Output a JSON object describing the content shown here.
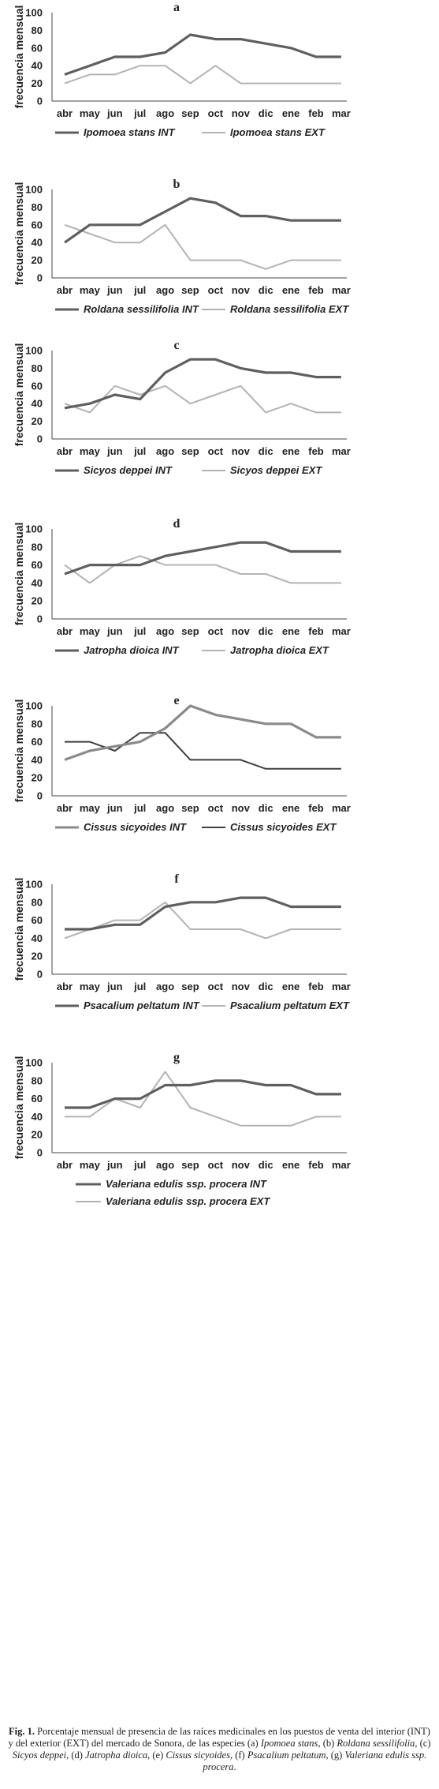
{
  "months": [
    "abr",
    "may",
    "jun",
    "jul",
    "ago",
    "sep",
    "oct",
    "nov",
    "dic",
    "ene",
    "feb",
    "mar"
  ],
  "colors": {
    "dark": "#5f5f5f",
    "light": "#b3b3b3"
  },
  "chart_data": [
    {
      "type": "line",
      "panel": "a",
      "ylabel": "frecuencia mensual",
      "ylim": [
        0,
        100
      ],
      "yticks": [
        0,
        20,
        40,
        60,
        80,
        100
      ],
      "categories": [
        "abr",
        "may",
        "jun",
        "jul",
        "ago",
        "sep",
        "oct",
        "nov",
        "dic",
        "ene",
        "feb",
        "mar"
      ],
      "series": [
        {
          "name": "Ipomoea stans INT",
          "color": "#5f5f5f",
          "values": [
            30,
            40,
            50,
            50,
            55,
            75,
            70,
            70,
            65,
            60,
            50,
            50
          ]
        },
        {
          "name": "Ipomoea stans  EXT",
          "color": "#b3b3b3",
          "values": [
            20,
            30,
            30,
            40,
            40,
            20,
            40,
            20,
            20,
            20,
            20,
            20
          ]
        }
      ]
    },
    {
      "type": "line",
      "panel": "b",
      "ylabel": "frecuencia mensual",
      "ylim": [
        0,
        100
      ],
      "yticks": [
        0,
        20,
        40,
        60,
        80,
        100
      ],
      "categories": [
        "abr",
        "may",
        "jun",
        "jul",
        "ago",
        "sep",
        "oct",
        "nov",
        "dic",
        "ene",
        "feb",
        "mar"
      ],
      "series": [
        {
          "name": "Roldana sessilifolia INT",
          "color": "#5f5f5f",
          "values": [
            40,
            60,
            60,
            60,
            75,
            90,
            85,
            70,
            70,
            65,
            65,
            65
          ]
        },
        {
          "name": "Roldana sessilifolia EXT",
          "color": "#b3b3b3",
          "values": [
            60,
            50,
            40,
            40,
            60,
            20,
            20,
            20,
            10,
            20,
            20,
            20
          ]
        }
      ]
    },
    {
      "type": "line",
      "panel": "c",
      "ylabel": "frecuencia mensual",
      "ylim": [
        0,
        100
      ],
      "yticks": [
        0,
        20,
        40,
        60,
        80,
        100
      ],
      "categories": [
        "abr",
        "may",
        "jun",
        "jul",
        "ago",
        "sep",
        "oct",
        "nov",
        "dic",
        "ene",
        "feb",
        "mar"
      ],
      "series": [
        {
          "name": "Sicyos deppei INT",
          "color": "#5f5f5f",
          "values": [
            35,
            40,
            50,
            45,
            75,
            90,
            90,
            80,
            75,
            75,
            70,
            70
          ]
        },
        {
          "name": "Sicyos deppei EXT",
          "color": "#b3b3b3",
          "values": [
            40,
            30,
            60,
            50,
            60,
            40,
            50,
            60,
            30,
            40,
            30,
            30
          ]
        }
      ]
    },
    {
      "type": "line",
      "panel": "d",
      "ylabel": "frecuencia mensual",
      "ylim": [
        0,
        100
      ],
      "yticks": [
        0,
        20,
        40,
        60,
        80,
        100
      ],
      "categories": [
        "abr",
        "may",
        "jun",
        "jul",
        "ago",
        "sep",
        "oct",
        "nov",
        "dic",
        "ene",
        "feb",
        "mar"
      ],
      "series": [
        {
          "name": "Jatropha dioica INT",
          "color": "#5f5f5f",
          "values": [
            50,
            60,
            60,
            60,
            70,
            75,
            80,
            85,
            85,
            75,
            75,
            75
          ]
        },
        {
          "name": "Jatropha dioica EXT",
          "color": "#b3b3b3",
          "values": [
            60,
            40,
            60,
            70,
            60,
            60,
            60,
            50,
            50,
            40,
            40,
            40
          ]
        }
      ]
    },
    {
      "type": "line",
      "panel": "e",
      "ylabel": "frecuencia mensual",
      "ylim": [
        0,
        100
      ],
      "yticks": [
        0,
        20,
        40,
        60,
        80,
        100
      ],
      "categories": [
        "abr",
        "may",
        "jun",
        "jul",
        "ago",
        "sep",
        "oct",
        "nov",
        "dic",
        "ene",
        "feb",
        "mar"
      ],
      "series": [
        {
          "name": "Cissus sicyoides      INT",
          "color": "#8a8a8a",
          "values": [
            40,
            50,
            55,
            60,
            75,
            100,
            90,
            85,
            80,
            80,
            65,
            65
          ]
        },
        {
          "name": "Cissus sicyoides      EXT",
          "color": "#3f3f3f",
          "values": [
            60,
            60,
            50,
            70,
            70,
            40,
            40,
            40,
            30,
            30,
            30,
            30
          ]
        }
      ]
    },
    {
      "type": "line",
      "panel": "f",
      "ylabel": "frecuencia mensual",
      "ylim": [
        0,
        100
      ],
      "yticks": [
        0,
        20,
        40,
        60,
        80,
        100
      ],
      "categories": [
        "abr",
        "may",
        "jun",
        "jul",
        "ago",
        "sep",
        "oct",
        "nov",
        "dic",
        "ene",
        "feb",
        "mar"
      ],
      "series": [
        {
          "name": "Psacalium peltatum INT",
          "color": "#5f5f5f",
          "values": [
            50,
            50,
            55,
            55,
            75,
            80,
            80,
            85,
            85,
            75,
            75,
            75
          ]
        },
        {
          "name": "Psacalium peltatum EXT",
          "color": "#b3b3b3",
          "values": [
            40,
            50,
            60,
            60,
            80,
            50,
            50,
            50,
            40,
            50,
            50,
            50
          ]
        }
      ]
    },
    {
      "type": "line",
      "panel": "g",
      "ylabel": "frecuencia mensual",
      "ylim": [
        0,
        100
      ],
      "yticks": [
        0,
        20,
        40,
        60,
        80,
        100
      ],
      "categories": [
        "abr",
        "may",
        "jun",
        "jul",
        "ago",
        "sep",
        "oct",
        "nov",
        "dic",
        "ene",
        "feb",
        "mar"
      ],
      "series": [
        {
          "name": "Valeriana edulis ssp. procera INT",
          "color": "#5f5f5f",
          "values": [
            50,
            50,
            60,
            60,
            75,
            75,
            80,
            80,
            75,
            75,
            65,
            65
          ]
        },
        {
          "name": "Valeriana edulis ssp. procera EXT",
          "color": "#b3b3b3",
          "values": [
            40,
            40,
            60,
            50,
            90,
            50,
            40,
            30,
            30,
            30,
            40,
            40
          ]
        }
      ]
    }
  ],
  "caption": {
    "label": "Fig. 1.",
    "text": "Porcentaje mensual de presencia de las raíces medicinales en los puestos de venta del interior (INT) y del exterior (EXT) del mercado de Sonora, de las especies (a)",
    "species": [
      {
        "tag": "(a)",
        "name": "Ipomoea stans"
      },
      {
        "tag": "(b)",
        "name": "Roldana sessilifolia"
      },
      {
        "tag": "(c)",
        "name": "Sicyos deppei"
      },
      {
        "tag": "(d)",
        "name": "Jatropha dioica"
      },
      {
        "tag": "(e)",
        "name": "Cissus sicyoides"
      },
      {
        "tag": "(f)",
        "name": "Psacalium peltatum"
      },
      {
        "tag": "(g)",
        "name": "Valeriana edulis ssp. procera"
      }
    ],
    "sp_a": "Ipomoea stans",
    "b": "(b)",
    "sp_b": "Roldana sessilifolia",
    "c": "(c)",
    "sp_c": "Sicyos deppei",
    "d": "(d)",
    "sp_d": "Jatropha dioica",
    "e": "(e)",
    "sp_e": "Cissus sicyoides",
    "f": "(f)",
    "sp_f": "Psacalium peltatum",
    "g": "(g)",
    "sp_g": "Valeriana edulis ssp. procera"
  }
}
